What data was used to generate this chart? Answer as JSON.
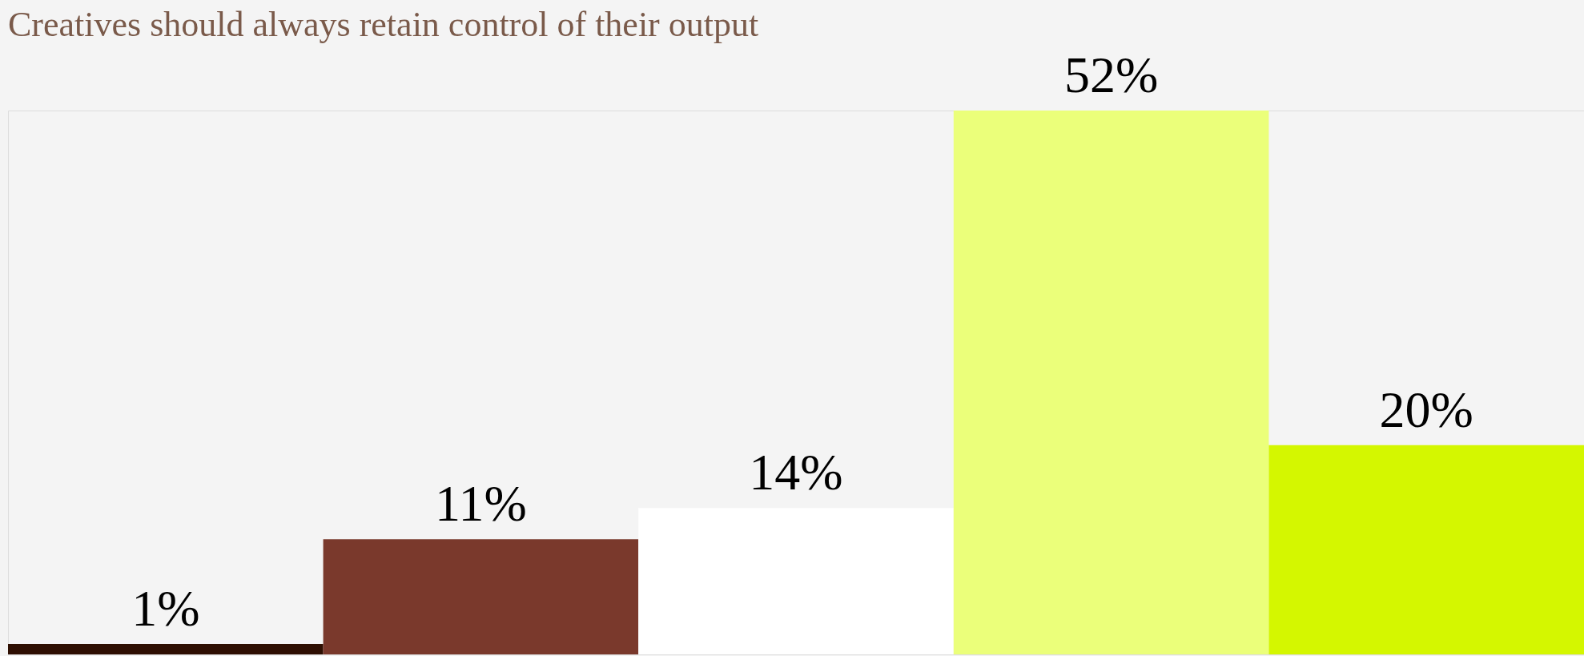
{
  "chart_data": {
    "type": "bar",
    "title": "Creatives should always retain control of their output",
    "categories": [
      null,
      null,
      null,
      null,
      null
    ],
    "values": [
      1,
      11,
      14,
      52,
      20
    ],
    "value_labels": [
      "1%",
      "11%",
      "14%",
      "52%",
      "20%"
    ],
    "colors": [
      "#2e0f02",
      "#7a392c",
      "#ffffff",
      "#ebff7a",
      "#d4f700"
    ],
    "grid": false
  }
}
